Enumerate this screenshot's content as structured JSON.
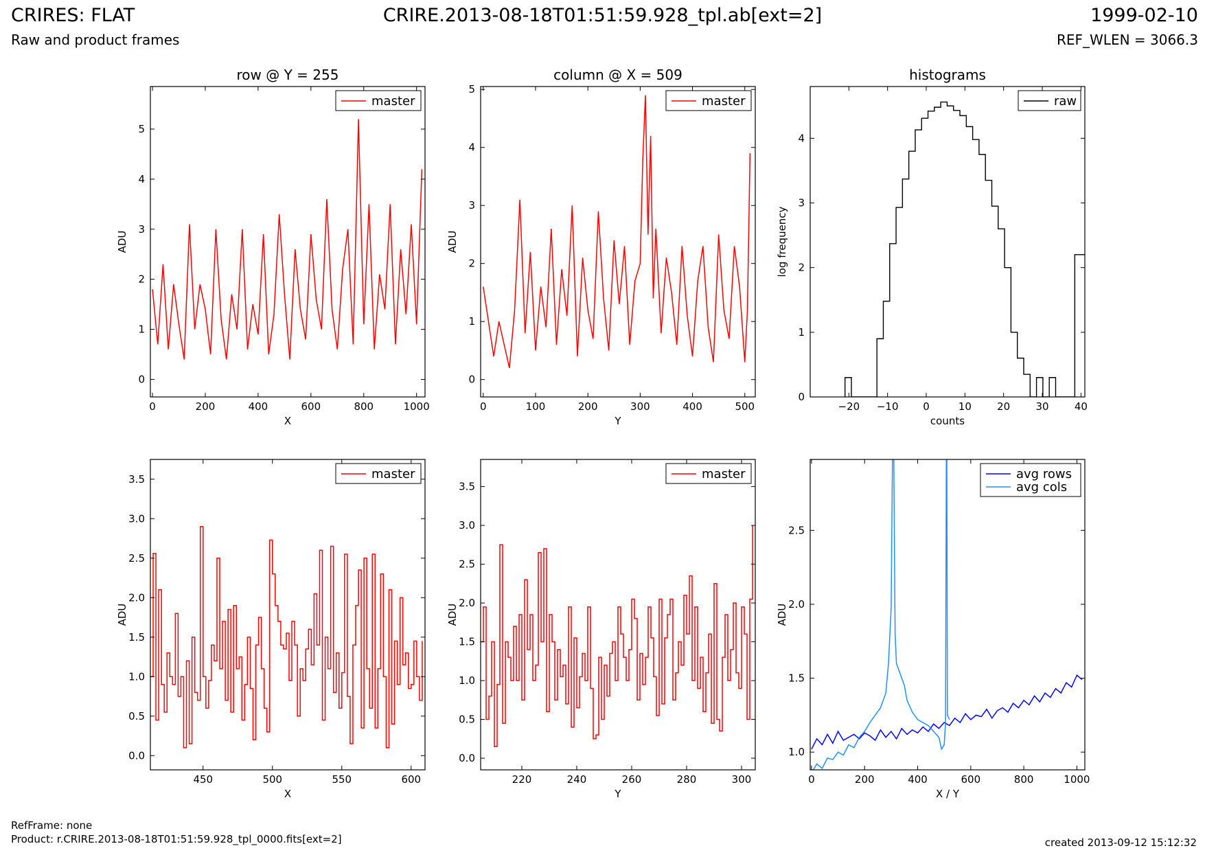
{
  "header": {
    "title_left": "CRIRES: FLAT",
    "subtitle_left": "Raw and product frames",
    "title_center": "CRIRE.2013-08-18T01:51:59.928_tpl.ab[ext=2]",
    "title_right": "1999-02-10",
    "subtitle_right": "REF_WLEN = 3066.3"
  },
  "footer": {
    "ref_frame": "RefFrame: none",
    "product": "Product: r.CRIRE.2013-08-18T01:51:59.928_tpl_0000.fits[ext=2]",
    "created": "created 2013-09-12 15:12:32"
  },
  "chart_data": [
    {
      "id": "row-full",
      "type": "line",
      "title": "row @ Y = 255",
      "xlabel": "X",
      "ylabel": "ADU",
      "xlim": [
        -8,
        1032
      ],
      "ylim": [
        -0.35,
        5.85
      ],
      "xticks": [
        0,
        200,
        400,
        600,
        800,
        1000
      ],
      "yticks": [
        0,
        1,
        2,
        3,
        4,
        5
      ],
      "legend": "top-right",
      "series": [
        {
          "name": "master",
          "color": "#ff0000",
          "x": [
            0,
            20,
            40,
            60,
            80,
            100,
            120,
            140,
            160,
            180,
            200,
            220,
            240,
            260,
            280,
            300,
            320,
            340,
            360,
            380,
            400,
            420,
            440,
            460,
            480,
            500,
            520,
            540,
            560,
            580,
            600,
            620,
            640,
            660,
            680,
            700,
            720,
            740,
            760,
            780,
            800,
            820,
            840,
            860,
            880,
            900,
            920,
            940,
            960,
            980,
            1000,
            1020
          ],
          "y": [
            1.8,
            0.7,
            2.3,
            0.6,
            1.9,
            1.1,
            0.4,
            3.1,
            1.0,
            1.9,
            1.4,
            0.5,
            3.0,
            1.2,
            0.4,
            1.7,
            1.0,
            3.0,
            0.6,
            1.5,
            0.9,
            2.9,
            0.5,
            1.3,
            3.3,
            1.7,
            0.4,
            2.6,
            1.4,
            0.8,
            2.9,
            1.6,
            1.0,
            3.6,
            1.4,
            0.6,
            2.2,
            3.0,
            0.7,
            5.2,
            1.1,
            3.5,
            0.6,
            2.1,
            1.4,
            3.5,
            0.7,
            2.6,
            1.3,
            3.1,
            1.1,
            4.2
          ]
        }
      ]
    },
    {
      "id": "column-full",
      "type": "line",
      "title": "column @ X = 509",
      "xlabel": "Y",
      "ylabel": "ADU",
      "xlim": [
        -5,
        520
      ],
      "ylim": [
        -0.3,
        5.05
      ],
      "xticks": [
        0,
        100,
        200,
        300,
        400,
        500
      ],
      "yticks": [
        0,
        1,
        2,
        3,
        4,
        5
      ],
      "legend": "top-right",
      "series": [
        {
          "name": "master",
          "color": "#ff0000",
          "x": [
            0,
            10,
            20,
            30,
            40,
            50,
            60,
            70,
            80,
            90,
            100,
            110,
            120,
            130,
            140,
            150,
            160,
            170,
            180,
            190,
            200,
            210,
            220,
            230,
            240,
            250,
            260,
            270,
            280,
            290,
            300,
            305,
            310,
            315,
            320,
            325,
            330,
            340,
            350,
            360,
            370,
            380,
            390,
            400,
            410,
            420,
            430,
            440,
            450,
            460,
            470,
            480,
            490,
            500,
            505,
            510
          ],
          "y": [
            1.6,
            1.0,
            0.4,
            1.0,
            0.6,
            0.2,
            1.2,
            3.1,
            0.8,
            2.2,
            0.5,
            1.6,
            0.9,
            2.6,
            0.6,
            1.9,
            1.1,
            3.0,
            0.4,
            2.1,
            1.2,
            0.7,
            2.9,
            1.4,
            0.5,
            2.4,
            1.3,
            2.3,
            0.6,
            1.7,
            2.0,
            3.8,
            4.9,
            2.5,
            4.2,
            1.4,
            2.6,
            0.8,
            2.1,
            1.5,
            0.6,
            2.3,
            1.1,
            0.4,
            1.7,
            2.3,
            0.9,
            0.3,
            2.5,
            1.2,
            0.7,
            2.3,
            1.6,
            0.3,
            1.2,
            3.9
          ]
        }
      ]
    },
    {
      "id": "histograms",
      "type": "histogram",
      "title": "histograms",
      "xlabel": "counts",
      "ylabel": "log frequency",
      "xlim": [
        -30,
        41
      ],
      "ylim": [
        0,
        4.8
      ],
      "xticks": [
        -20,
        -10,
        0,
        10,
        20,
        30,
        40
      ],
      "yticks": [
        0,
        1,
        2,
        3,
        4
      ],
      "legend": "top-right",
      "series": [
        {
          "name": "raw",
          "color": "#000000",
          "bin_edges": [
            -21,
            -19.35,
            -17.7,
            -16.05,
            -14.4,
            -12.75,
            -11.1,
            -9.45,
            -7.8,
            -6.15,
            -4.5,
            -2.85,
            -1.2,
            0.45,
            2.1,
            3.75,
            5.4,
            7.05,
            8.7,
            10.35,
            12.0,
            13.65,
            15.3,
            16.95,
            18.6,
            20.25,
            21.9,
            23.55,
            25.2,
            26.85,
            28.5,
            30.15,
            31.8,
            33.45,
            35.1,
            36.75,
            38.4,
            40.05,
            41.7
          ],
          "counts": [
            0.3,
            0,
            0,
            0,
            0,
            0.9,
            1.48,
            2.37,
            2.93,
            3.37,
            3.8,
            4.13,
            4.31,
            4.42,
            4.48,
            4.56,
            4.5,
            4.43,
            4.35,
            4.18,
            3.98,
            3.75,
            3.35,
            2.95,
            2.6,
            2.0,
            1.0,
            0.6,
            0.35,
            0,
            0.3,
            0,
            0.3,
            0,
            0,
            0,
            2.2,
            2.2
          ]
        }
      ]
    },
    {
      "id": "row-zoom",
      "type": "line",
      "title": "",
      "xlabel": "X",
      "ylabel": "ADU",
      "xlim": [
        412,
        610
      ],
      "ylim": [
        -0.18,
        3.75
      ],
      "xticks": [
        450,
        500,
        550,
        600
      ],
      "yticks": [
        0.0,
        0.5,
        1.0,
        1.5,
        2.0,
        2.5,
        3.0,
        3.5
      ],
      "legend": "top-right",
      "series": [
        {
          "name": "master",
          "color": "#ff0000",
          "x": [
            412,
            414,
            416,
            418,
            420,
            422,
            424,
            426,
            428,
            430,
            432,
            434,
            436,
            438,
            440,
            442,
            444,
            446,
            448,
            450,
            452,
            454,
            456,
            458,
            460,
            462,
            464,
            466,
            468,
            470,
            472,
            474,
            476,
            478,
            480,
            482,
            484,
            486,
            488,
            490,
            492,
            494,
            496,
            498,
            500,
            502,
            504,
            506,
            508,
            510,
            512,
            514,
            516,
            518,
            520,
            522,
            524,
            526,
            528,
            530,
            532,
            534,
            536,
            538,
            540,
            542,
            544,
            546,
            548,
            550,
            552,
            554,
            556,
            558,
            560,
            562,
            564,
            566,
            568,
            570,
            572,
            574,
            576,
            578,
            580,
            582,
            584,
            586,
            588,
            590,
            592,
            594,
            596,
            598,
            600,
            602,
            604,
            606,
            608
          ],
          "y": [
            1.0,
            2.56,
            0.45,
            2.1,
            0.9,
            0.55,
            1.3,
            1.0,
            0.9,
            1.8,
            0.75,
            1.0,
            0.1,
            1.2,
            0.15,
            1.5,
            0.8,
            0.7,
            2.9,
            1.0,
            0.6,
            0.95,
            1.4,
            1.2,
            2.5,
            1.1,
            1.7,
            0.7,
            1.85,
            0.55,
            1.9,
            1.1,
            1.25,
            0.45,
            0.9,
            1.5,
            0.85,
            0.2,
            1.4,
            1.75,
            1.1,
            0.6,
            0.3,
            2.73,
            2.3,
            1.9,
            1.7,
            1.4,
            1.35,
            1.55,
            0.95,
            1.7,
            1.4,
            0.5,
            1.1,
            0.95,
            1.35,
            1.6,
            1.15,
            2.05,
            1.4,
            2.6,
            0.45,
            1.5,
            1.1,
            2.65,
            0.8,
            1.3,
            0.6,
            1.05,
            2.55,
            0.75,
            0.15,
            1.4,
            1.9,
            2.35,
            0.35,
            2.5,
            1.1,
            0.6,
            2.55,
            0.35,
            1.1,
            2.3,
            1.0,
            0.1,
            2.1,
            0.4,
            1.45,
            0.9,
            2.0,
            1.15,
            1.3,
            0.85,
            0.9,
            1.45,
            1.0,
            0.7,
            1.45
          ]
        }
      ]
    },
    {
      "id": "column-zoom",
      "type": "line",
      "title": "",
      "xlabel": "Y",
      "ylabel": "ADU",
      "xlim": [
        205,
        305
      ],
      "ylim": [
        -0.15,
        3.85
      ],
      "xticks": [
        220,
        240,
        260,
        280,
        300
      ],
      "yticks": [
        0.0,
        0.5,
        1.0,
        1.5,
        2.0,
        2.5,
        3.0,
        3.5
      ],
      "legend": "top-right",
      "series": [
        {
          "name": "master",
          "color": "#ff0000",
          "x": [
            205,
            206,
            207,
            208,
            209,
            210,
            211,
            212,
            213,
            214,
            215,
            216,
            217,
            218,
            219,
            220,
            221,
            222,
            223,
            224,
            225,
            226,
            227,
            228,
            229,
            230,
            231,
            232,
            233,
            234,
            235,
            236,
            237,
            238,
            239,
            240,
            241,
            242,
            243,
            244,
            245,
            246,
            247,
            248,
            249,
            250,
            251,
            252,
            253,
            254,
            255,
            256,
            257,
            258,
            259,
            260,
            261,
            262,
            263,
            264,
            265,
            266,
            267,
            268,
            269,
            270,
            271,
            272,
            273,
            274,
            275,
            276,
            277,
            278,
            279,
            280,
            281,
            282,
            283,
            284,
            285,
            286,
            287,
            288,
            289,
            290,
            291,
            292,
            293,
            294,
            295,
            296,
            297,
            298,
            299,
            300,
            301,
            302,
            303,
            304
          ],
          "y": [
            1.5,
            1.95,
            0.5,
            0.8,
            1.5,
            0.15,
            0.95,
            2.75,
            0.45,
            1.5,
            1.3,
            1.0,
            1.7,
            1.0,
            1.85,
            0.75,
            2.3,
            1.4,
            1.85,
            1.0,
            1.2,
            2.65,
            1.5,
            2.7,
            0.6,
            1.85,
            1.5,
            0.75,
            1.4,
            1.05,
            1.2,
            0.7,
            1.95,
            0.4,
            1.55,
            0.65,
            1.05,
            1.35,
            1.0,
            1.95,
            0.9,
            0.25,
            0.3,
            1.3,
            0.5,
            1.2,
            0.8,
            1.35,
            1.5,
            1.0,
            1.95,
            1.6,
            1.3,
            1.0,
            1.4,
            2.05,
            1.8,
            0.75,
            1.35,
            0.95,
            1.3,
            1.95,
            1.55,
            1.05,
            0.55,
            2.05,
            0.7,
            1.55,
            1.85,
            2.05,
            0.75,
            1.1,
            1.5,
            1.2,
            2.1,
            1.6,
            2.35,
            1.0,
            1.95,
            0.9,
            1.3,
            0.6,
            1.1,
            1.6,
            0.45,
            2.25,
            0.5,
            0.35,
            1.3,
            1.85,
            1.0,
            1.4,
            2.0,
            1.1,
            0.9,
            1.95,
            1.6,
            0.5,
            2.05,
            3.0
          ]
        }
      ]
    },
    {
      "id": "averages",
      "type": "line",
      "title": "",
      "xlabel": "X / Y",
      "ylabel": "ADU",
      "xlim": [
        -5,
        1030
      ],
      "ylim": [
        0.88,
        2.98
      ],
      "xticks": [
        0,
        200,
        400,
        600,
        800,
        1000
      ],
      "yticks": [
        1.0,
        1.5,
        2.0,
        2.5
      ],
      "legend": "top-right",
      "series": [
        {
          "name": "avg rows",
          "color": "#0000ff",
          "x": [
            0,
            20,
            40,
            60,
            80,
            100,
            120,
            140,
            160,
            180,
            200,
            220,
            240,
            260,
            280,
            300,
            320,
            340,
            360,
            380,
            400,
            420,
            440,
            460,
            480,
            500,
            520,
            540,
            560,
            580,
            600,
            620,
            640,
            660,
            680,
            700,
            720,
            740,
            760,
            780,
            800,
            820,
            840,
            860,
            880,
            900,
            920,
            940,
            960,
            980,
            1000,
            1020
          ],
          "y": [
            1.02,
            1.09,
            1.05,
            1.12,
            1.06,
            1.14,
            1.08,
            1.1,
            1.12,
            1.09,
            1.13,
            1.11,
            1.08,
            1.15,
            1.1,
            1.14,
            1.09,
            1.16,
            1.12,
            1.15,
            1.13,
            1.17,
            1.14,
            1.19,
            1.16,
            1.2,
            1.18,
            1.23,
            1.2,
            1.26,
            1.22,
            1.25,
            1.24,
            1.29,
            1.23,
            1.28,
            1.3,
            1.27,
            1.33,
            1.3,
            1.35,
            1.32,
            1.38,
            1.34,
            1.4,
            1.37,
            1.43,
            1.4,
            1.47,
            1.44,
            1.52,
            1.49
          ]
        },
        {
          "name": "avg cols",
          "color": "#1e90ff",
          "x": [
            0,
            20,
            40,
            60,
            80,
            100,
            120,
            140,
            160,
            180,
            200,
            220,
            240,
            260,
            280,
            290,
            300,
            305,
            310,
            315,
            320,
            330,
            340,
            350,
            360,
            380,
            400,
            420,
            440,
            460,
            480,
            490,
            500,
            505,
            508,
            509,
            510,
            512,
            520
          ],
          "y": [
            0.86,
            0.92,
            0.89,
            0.96,
            0.95,
            1.0,
            0.98,
            1.05,
            1.03,
            1.1,
            1.14,
            1.2,
            1.25,
            1.3,
            1.4,
            1.6,
            1.97,
            2.98,
            2.98,
            1.8,
            1.6,
            1.55,
            1.5,
            1.45,
            1.35,
            1.27,
            1.22,
            1.2,
            1.18,
            1.14,
            1.1,
            1.02,
            1.05,
            1.2,
            2.98,
            2.98,
            2.98,
            1.25,
            1.22
          ]
        }
      ]
    }
  ]
}
